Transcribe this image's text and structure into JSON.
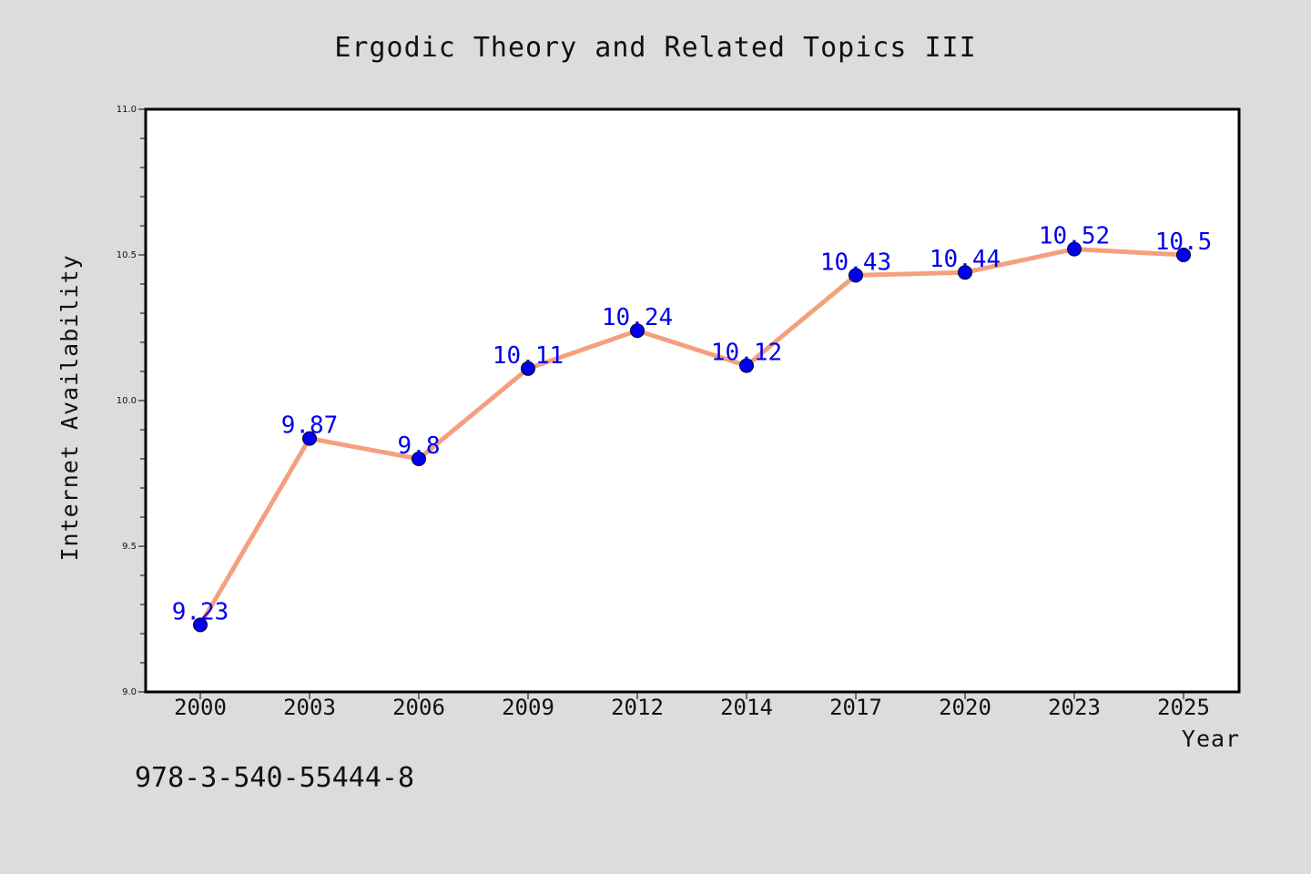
{
  "chart_data": {
    "type": "line",
    "title": "Ergodic Theory and Related Topics III",
    "xlabel": "Year",
    "ylabel": "Internet Availability",
    "categories": [
      "2000",
      "2003",
      "2006",
      "2009",
      "2012",
      "2014",
      "2017",
      "2020",
      "2023",
      "2025"
    ],
    "series": [
      {
        "values": [
          9.23,
          9.87,
          9.8,
          10.11,
          10.24,
          10.12,
          10.43,
          10.44,
          10.52,
          10.5
        ],
        "labels": [
          "9.23",
          "9.87",
          "9.8",
          "10.11",
          "10.24",
          "10.12",
          "10.43",
          "10.44",
          "10.52",
          "10.5"
        ]
      }
    ],
    "ylim": [
      9.0,
      11.0
    ],
    "yticks": [
      "9.0",
      "9.5",
      "10.0",
      "10.5",
      "11.0"
    ],
    "grid": false,
    "legend": "none",
    "colors": {
      "line": "#f4a07e",
      "marker": "#0000ee",
      "data_label": "#0000ee",
      "background": "#dcdcdc",
      "plot_area": "#ffffff"
    }
  },
  "footer": {
    "isbn": "978-3-540-55444-8"
  }
}
